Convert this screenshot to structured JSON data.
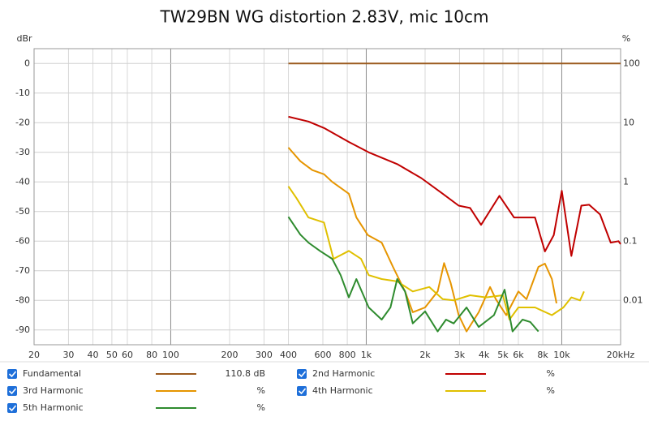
{
  "chart_data": {
    "type": "line",
    "title": "TW29BN WG distortion 2.83V, mic 10cm",
    "ylabel": "dBr",
    "y2label": "%",
    "xscale": "log",
    "y2scale": "log",
    "grid": true,
    "xlim": [
      20,
      20000
    ],
    "xticks": [
      20,
      30,
      40,
      50,
      60,
      80,
      100,
      200,
      300,
      400,
      600,
      800,
      {
        "value": 1000,
        "label": "1k"
      },
      {
        "value": 2000,
        "label": "2k"
      },
      {
        "value": 3000,
        "label": "3k"
      },
      {
        "value": 4000,
        "label": "4k"
      },
      {
        "value": 5000,
        "label": "5k"
      },
      {
        "value": 6000,
        "label": "6k"
      },
      {
        "value": 8000,
        "label": "8k"
      },
      {
        "value": 10000,
        "label": "10k"
      },
      {
        "value": 20000,
        "label": "20kHz"
      }
    ],
    "ylim": [
      -95,
      5
    ],
    "yticks": [
      0,
      -10,
      -20,
      -30,
      -40,
      -50,
      -60,
      -70,
      -80,
      -90
    ],
    "y2lim": [
      0.00178,
      178
    ],
    "y2ticks": [
      100,
      10,
      1,
      0.1,
      0.01
    ],
    "series": [
      {
        "name": "Fundamental",
        "color": "#9b5a1e",
        "readout": "110.8 dB",
        "x": [
          400,
          20000
        ],
        "values": [
          0,
          0
        ]
      },
      {
        "name": "2nd Harmonic",
        "color": "#c00000",
        "readout": "%",
        "x": [
          400,
          506,
          608,
          815,
          1030,
          1440,
          1910,
          2460,
          2970,
          3400,
          3865,
          4800,
          5700,
          7300,
          8200,
          9100,
          10000,
          11200,
          12600,
          13800,
          15700,
          17800,
          19500,
          20000
        ],
        "values": [
          -18,
          -19.6,
          -21.8,
          -26.5,
          -30,
          -34,
          -38.7,
          -44,
          -48,
          -48.8,
          -54.5,
          -44.7,
          -52,
          -52,
          -63.5,
          -58,
          -43,
          -65,
          -48,
          -47.7,
          -51,
          -60.5,
          -60,
          -61
        ]
      },
      {
        "name": "3rd Harmonic",
        "color": "#e69500",
        "readout": "%",
        "x": [
          400,
          460,
          530,
          608,
          670,
          815,
          890,
          1020,
          1200,
          1370,
          1580,
          1730,
          2000,
          2320,
          2500,
          2700,
          2970,
          3260,
          3760,
          4300,
          4600,
          5200,
          6000,
          6600,
          7600,
          8200,
          8900,
          9400
        ],
        "values": [
          -28.4,
          -33,
          -36,
          -37.4,
          -40,
          -44,
          -52,
          -58,
          -60.5,
          -68.7,
          -77,
          -84,
          -82.4,
          -77,
          -67.4,
          -74,
          -85,
          -90.5,
          -84,
          -75.5,
          -79.6,
          -85,
          -77,
          -79.6,
          -68.7,
          -67.6,
          -72.8,
          -81
        ]
      },
      {
        "name": "4th Harmonic",
        "color": "#e0c000",
        "readout": "%",
        "x": [
          400,
          440,
          506,
          608,
          680,
          815,
          940,
          1030,
          1200,
          1440,
          1730,
          2100,
          2460,
          2800,
          3400,
          4100,
          5000,
          5400,
          6000,
          7300,
          8900,
          10200,
          11200,
          12400,
          13000
        ],
        "values": [
          -41.5,
          -45.5,
          -52,
          -53.7,
          -66,
          -63.3,
          -66,
          -71.5,
          -72.8,
          -73.6,
          -77,
          -75.5,
          -79.6,
          -80,
          -78.3,
          -79,
          -78.3,
          -86.5,
          -82.4,
          -82.4,
          -85,
          -82.4,
          -79,
          -80,
          -77
        ]
      },
      {
        "name": "5th Harmonic",
        "color": "#2e8b2e",
        "readout": "%",
        "x": [
          400,
          460,
          506,
          580,
          670,
          740,
          815,
          890,
          1030,
          1200,
          1330,
          1440,
          1580,
          1730,
          2000,
          2320,
          2560,
          2800,
          3260,
          3760,
          4500,
          5100,
          5600,
          6300,
          6900,
          7600
        ],
        "values": [
          -51.8,
          -57.8,
          -60.5,
          -63.3,
          -66,
          -71.5,
          -79,
          -72.8,
          -82.4,
          -86.5,
          -82.4,
          -72.8,
          -77,
          -87.8,
          -83.7,
          -90.5,
          -86.5,
          -87.8,
          -82.4,
          -89,
          -85,
          -76.4,
          -90.5,
          -86.5,
          -87.3,
          -90.5
        ]
      }
    ]
  }
}
